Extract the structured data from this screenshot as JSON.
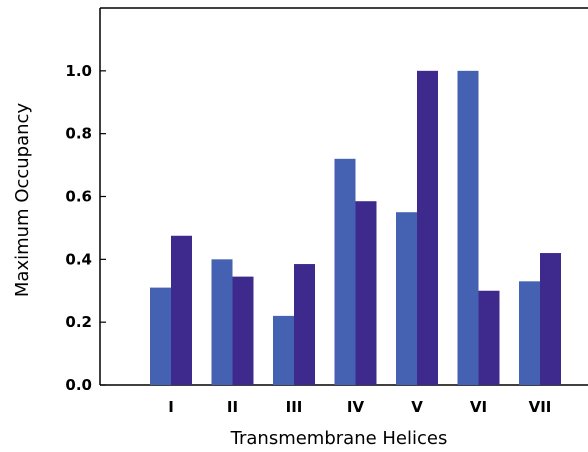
{
  "chart_data": {
    "type": "bar",
    "title": "",
    "xlabel": "Transmembrane Helices",
    "ylabel": "Maximum Occupancy",
    "categories": [
      "I",
      "II",
      "III",
      "IV",
      "V",
      "VI",
      "VII"
    ],
    "series": [
      {
        "color": "#4561b2",
        "values": [
          0.31,
          0.4,
          0.22,
          0.72,
          0.55,
          1.0,
          0.33
        ]
      },
      {
        "color": "#3d2a8c",
        "values": [
          0.475,
          0.345,
          0.385,
          0.585,
          1.0,
          0.3,
          0.42
        ]
      }
    ],
    "yticks": [
      "0.0",
      "0.2",
      "0.4",
      "0.6",
      "0.8",
      "1.0"
    ],
    "ylim": [
      0,
      1.2
    ],
    "grid": false,
    "legend": "none"
  }
}
